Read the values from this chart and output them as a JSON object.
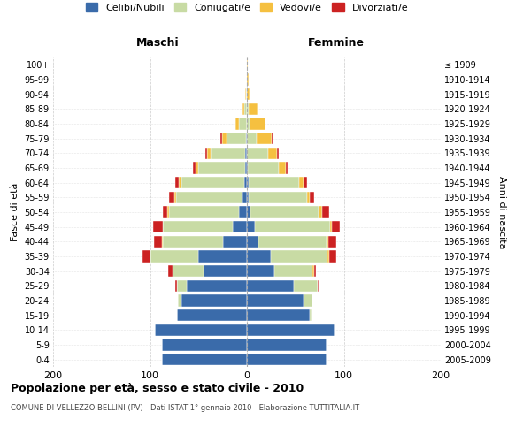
{
  "age_groups": [
    "0-4",
    "5-9",
    "10-14",
    "15-19",
    "20-24",
    "25-29",
    "30-34",
    "35-39",
    "40-44",
    "45-49",
    "50-54",
    "55-59",
    "60-64",
    "65-69",
    "70-74",
    "75-79",
    "80-84",
    "85-89",
    "90-94",
    "95-99",
    "100+"
  ],
  "birth_years": [
    "2005-2009",
    "2000-2004",
    "1995-1999",
    "1990-1994",
    "1985-1989",
    "1980-1984",
    "1975-1979",
    "1970-1974",
    "1965-1969",
    "1960-1964",
    "1955-1959",
    "1950-1954",
    "1945-1949",
    "1940-1944",
    "1935-1939",
    "1930-1934",
    "1925-1929",
    "1920-1924",
    "1915-1919",
    "1910-1914",
    "≤ 1909"
  ],
  "male": {
    "celibi": [
      88,
      88,
      95,
      72,
      68,
      62,
      45,
      50,
      25,
      15,
      8,
      5,
      3,
      2,
      2,
      1,
      0,
      0,
      0,
      0,
      0
    ],
    "coniugati": [
      0,
      0,
      0,
      0,
      3,
      10,
      32,
      50,
      62,
      72,
      72,
      68,
      65,
      48,
      35,
      20,
      8,
      3,
      1,
      0,
      0
    ],
    "vedovi": [
      0,
      0,
      0,
      0,
      0,
      0,
      0,
      0,
      1,
      0,
      2,
      2,
      2,
      3,
      4,
      5,
      4,
      2,
      1,
      0,
      0
    ],
    "divorziati": [
      0,
      0,
      0,
      0,
      0,
      2,
      4,
      8,
      8,
      10,
      5,
      5,
      4,
      3,
      2,
      1,
      0,
      0,
      0,
      0,
      0
    ]
  },
  "female": {
    "nubili": [
      82,
      82,
      90,
      65,
      58,
      48,
      28,
      25,
      12,
      8,
      4,
      2,
      2,
      1,
      0,
      0,
      0,
      0,
      0,
      0,
      0
    ],
    "coniugate": [
      0,
      0,
      0,
      2,
      10,
      25,
      40,
      58,
      70,
      78,
      70,
      60,
      52,
      32,
      22,
      10,
      3,
      2,
      0,
      0,
      0
    ],
    "vedove": [
      0,
      0,
      0,
      0,
      0,
      0,
      1,
      2,
      2,
      2,
      4,
      3,
      4,
      7,
      9,
      16,
      16,
      9,
      3,
      2,
      1
    ],
    "divorziate": [
      0,
      0,
      0,
      0,
      0,
      1,
      2,
      7,
      8,
      8,
      7,
      4,
      4,
      2,
      2,
      1,
      0,
      0,
      0,
      0,
      0
    ]
  },
  "colors": {
    "celibi_nubili": "#3a6baa",
    "coniugati": "#c8dba4",
    "vedovi": "#f5c040",
    "divorziati": "#cc2222"
  },
  "xlim": 200,
  "title": "Popolazione per età, sesso e stato civile - 2010",
  "subtitle": "COMUNE DI VELLEZZO BELLINI (PV) - Dati ISTAT 1° gennaio 2010 - Elaborazione TUTTITALIA.IT",
  "ylabel_left": "Fasce di età",
  "ylabel_right": "Anni di nascita",
  "xlabel_left": "Maschi",
  "xlabel_right": "Femmine",
  "background_color": "#ffffff",
  "grid_color": "#cccccc"
}
